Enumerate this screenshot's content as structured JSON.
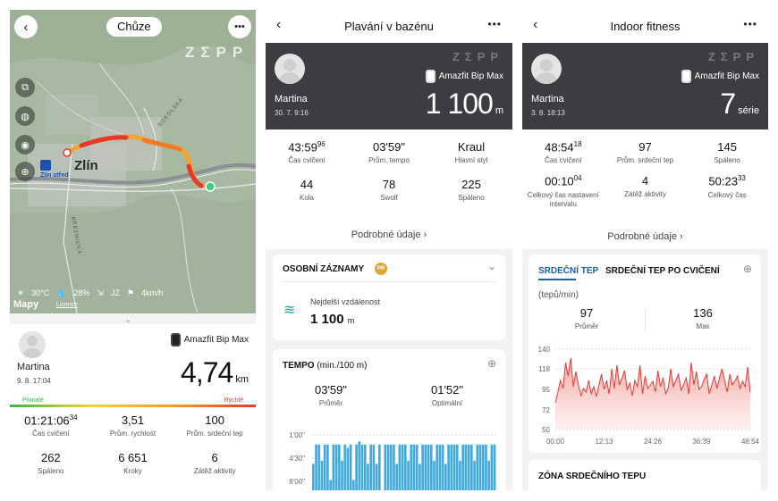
{
  "walk": {
    "mode_label": "Chůze",
    "zepp_logo": "ZΣPP",
    "city_label": "Zlín",
    "stop_label": "Zlín střed",
    "road_labels": [
      "SOKOLSKÁ",
      "BŘEZNICKÁ"
    ],
    "weather": {
      "temp": "30°C",
      "humidity": "28%",
      "wind_dir": "JZ",
      "wind_speed": "4km/h"
    },
    "map_brand": "Mapy",
    "licence": "Licence",
    "user_name": "Martina",
    "date": "9. 8. 17:04",
    "device": "Amazfit Bip Max",
    "distance": "4,74",
    "distance_unit": "km",
    "pace_slow_label": "Pomalé",
    "pace_fast_label": "Rychlé",
    "stats": [
      {
        "value": "01:21:06",
        "sup": "34",
        "label": "Čas cvičení"
      },
      {
        "value": "3,51",
        "sup": "",
        "label": "Prům. rychlost"
      },
      {
        "value": "100",
        "sup": "",
        "label": "Prům. srdeční tep"
      },
      {
        "value": "262",
        "sup": "",
        "label": "Spáleno"
      },
      {
        "value": "6 651",
        "sup": "",
        "label": "Kroky"
      },
      {
        "value": "6",
        "sup": "",
        "label": "Zátěž aktivity"
      }
    ]
  },
  "swim": {
    "title": "Plavání v bazénu",
    "zepp_logo": "ZΣPP",
    "device": "Amazfit Bip Max",
    "user_name": "Martina",
    "date": "30. 7. 9:16",
    "distance": "1 100",
    "distance_unit": "m",
    "stats": [
      {
        "value": "43:59",
        "sup": "96",
        "label": "Čas cvičení"
      },
      {
        "value": "03'59\"",
        "sup": "",
        "label": "Prům. tempo"
      },
      {
        "value": "Kraul",
        "sup": "",
        "label": "Hlavní styl"
      },
      {
        "value": "44",
        "sup": "",
        "label": "Kola"
      },
      {
        "value": "78",
        "sup": "",
        "label": "Swolf"
      },
      {
        "value": "225",
        "sup": "",
        "label": "Spáleno"
      }
    ],
    "details_link": "Podrobné údaje",
    "records_title": "OSOBNÍ ZÁZNAMY",
    "pr_badge": "PR",
    "record_label": "Nejdelší vzdálenost",
    "record_value": "1 100",
    "record_unit": "m",
    "tempo_title": "TEMPO",
    "tempo_unit": "(min./100 m)",
    "tempo_avg_value": "03'59\"",
    "tempo_avg_label": "Průměr",
    "tempo_opt_value": "01'52\"",
    "tempo_opt_label": "Optimální",
    "tempo_chart": {
      "type": "bar",
      "ytick_labels": [
        "1'00\"",
        "4'30\"",
        "8'00\""
      ],
      "bar_color": "#3fa9e0",
      "values": [
        0.55,
        0.85,
        0.85,
        0.6,
        0.85,
        0.85,
        0.3,
        0.85,
        0.85,
        0.85,
        0.6,
        0.85,
        0.8,
        0.85,
        0.3,
        0.85,
        0.9,
        0.85,
        0.85,
        0.55,
        0.85,
        0.85,
        0.55,
        0.85,
        0.0,
        0.85,
        0.85,
        0.85,
        0.85,
        0.55,
        0.85,
        0.85,
        0.85,
        0.6,
        0.85,
        0.85,
        0.85,
        0.55,
        0.85,
        0.85,
        0.85,
        0.85,
        0.6,
        0.85,
        0.85,
        0.85,
        0.55,
        0.85,
        0.85,
        0.85,
        0.85,
        0.6,
        0.85,
        0.85,
        0.85,
        0.85,
        0.6,
        0.85,
        0.85,
        0.85,
        0.85,
        0.6,
        0.85,
        0.85
      ]
    }
  },
  "fitness": {
    "title": "Indoor fitness",
    "zepp_logo": "ZΣPP",
    "device": "Amazfit Bip Max",
    "user_name": "Martina",
    "date": "3. 8. 18:13",
    "series_count": "7",
    "series_unit": "série",
    "stats": [
      {
        "value": "48:54",
        "sup": "18",
        "label": "Čas cvičení"
      },
      {
        "value": "97",
        "sup": "",
        "label": "Prům. srdeční tep"
      },
      {
        "value": "145",
        "sup": "",
        "label": "Spáleno"
      },
      {
        "value": "00:10",
        "sup": "04",
        "label": "Celkový čas nastavení intervalu"
      },
      {
        "value": "4",
        "sup": "",
        "label": "Zátěž aktivity"
      },
      {
        "value": "50:23",
        "sup": "33",
        "label": "Celkový čas"
      }
    ],
    "details_link": "Podrobné údaje",
    "tab_hr": "SRDEČNÍ TEP",
    "tab_hr_after": "SRDEČNÍ TEP PO CVIČENÍ",
    "hr_unit": "(tepů/min)",
    "hr_avg_value": "97",
    "hr_avg_label": "Průměr",
    "hr_max_value": "136",
    "hr_max_label": "Max",
    "hr_chart": {
      "type": "area",
      "ylim": [
        50,
        140
      ],
      "yticks": [
        140,
        118,
        95,
        72,
        50
      ],
      "xticks": [
        "00:00",
        "12:13",
        "24:26",
        "36:39",
        "48:54"
      ],
      "line_color": "#e53935",
      "values": [
        80,
        92,
        105,
        96,
        125,
        110,
        130,
        98,
        115,
        100,
        88,
        96,
        92,
        105,
        90,
        98,
        87,
        100,
        112,
        95,
        104,
        90,
        118,
        96,
        122,
        100,
        108,
        116,
        95,
        102,
        88,
        105,
        98,
        122,
        90,
        110,
        96,
        100,
        104,
        92,
        116,
        98,
        108,
        90,
        96,
        118,
        98,
        105,
        112,
        94,
        100,
        108,
        90,
        125,
        100,
        115,
        95,
        98,
        106,
        112,
        90,
        100,
        110,
        96,
        108,
        118,
        105,
        92,
        112,
        100,
        104,
        110,
        96,
        104,
        98,
        120,
        92
      ]
    },
    "hr_zone_title": "ZÓNA SRDEČNÍHO TEPU"
  }
}
